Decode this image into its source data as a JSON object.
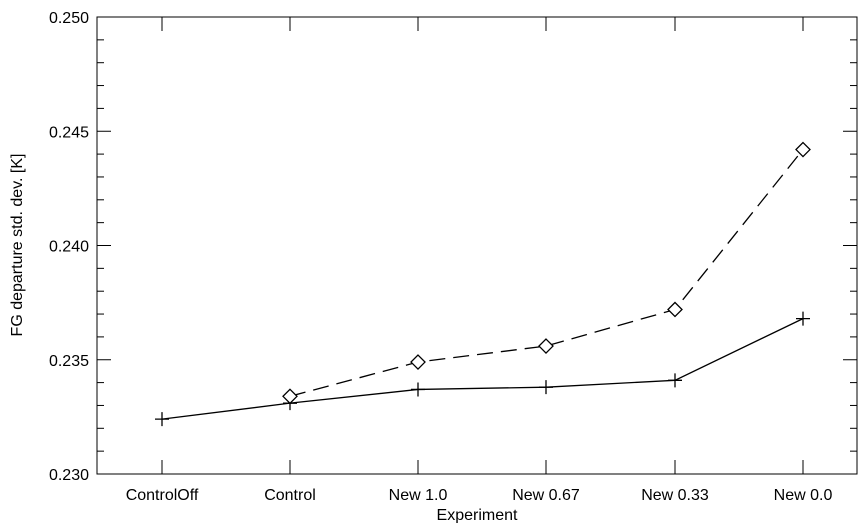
{
  "chart_data": {
    "type": "line",
    "title": "",
    "xlabel": "Experiment",
    "ylabel": "FG departure std. dev. [K]",
    "categories": [
      "ControlOff",
      "Control",
      "New 1.0",
      "New 0.67",
      "New 0.33",
      "New 0.0"
    ],
    "ylim": [
      0.23,
      0.25
    ],
    "yticks": [
      "0.230",
      "0.235",
      "0.240",
      "0.245",
      "0.250"
    ],
    "grid": false,
    "legend": "none",
    "series": [
      {
        "marker": "plus",
        "line_style": "solid",
        "color": "#000000",
        "values": [
          0.2324,
          0.2331,
          0.2337,
          0.2338,
          0.2341,
          0.2368
        ]
      },
      {
        "marker": "diamond",
        "line_style": "dashed",
        "color": "#000000",
        "values": [
          null,
          0.2334,
          0.2349,
          0.2356,
          0.2372,
          0.2442
        ]
      }
    ]
  }
}
